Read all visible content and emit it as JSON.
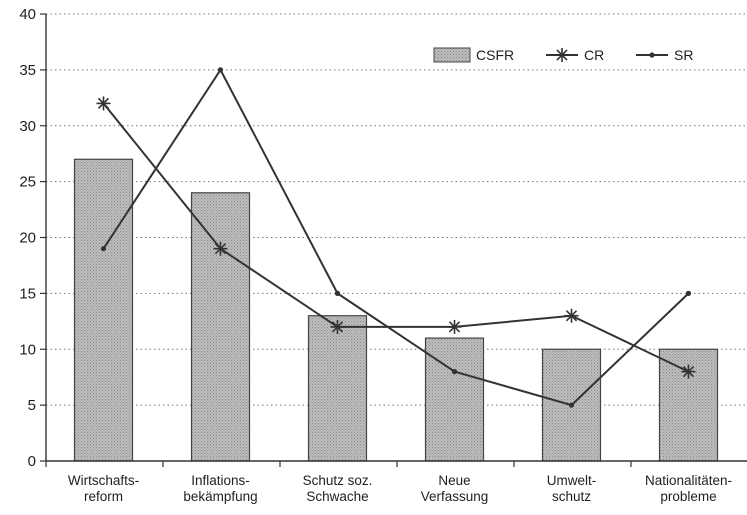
{
  "chart_data": {
    "type": "bar",
    "categories": [
      [
        "Wirtschafts-",
        "reform"
      ],
      [
        "Inflations-",
        "bekämpfung"
      ],
      [
        "Schutz soz.",
        "Schwache"
      ],
      [
        "Neue",
        "Verfassung"
      ],
      [
        "Umwelt-",
        "schutz"
      ],
      [
        "Nationalitäten-",
        "probleme"
      ]
    ],
    "series": [
      {
        "name": "CSFR",
        "kind": "bar",
        "values": [
          27,
          24,
          13,
          11,
          10,
          10
        ]
      },
      {
        "name": "CR",
        "kind": "line",
        "marker": "asterisk",
        "values": [
          32,
          19,
          12,
          12,
          13,
          8
        ]
      },
      {
        "name": "SR",
        "kind": "line",
        "marker": "dot",
        "values": [
          19,
          35,
          15,
          8,
          5,
          15
        ]
      }
    ],
    "ylim": [
      0,
      40
    ],
    "yticks": [
      0,
      5,
      10,
      15,
      20,
      25,
      30,
      35,
      40
    ],
    "grid": "horizontal-dotted",
    "legend": "top-right",
    "colors": {
      "bar_fill": "#b8b8b8",
      "bar_stroke": "#444444",
      "line": "#333333",
      "axis": "#333333"
    }
  }
}
